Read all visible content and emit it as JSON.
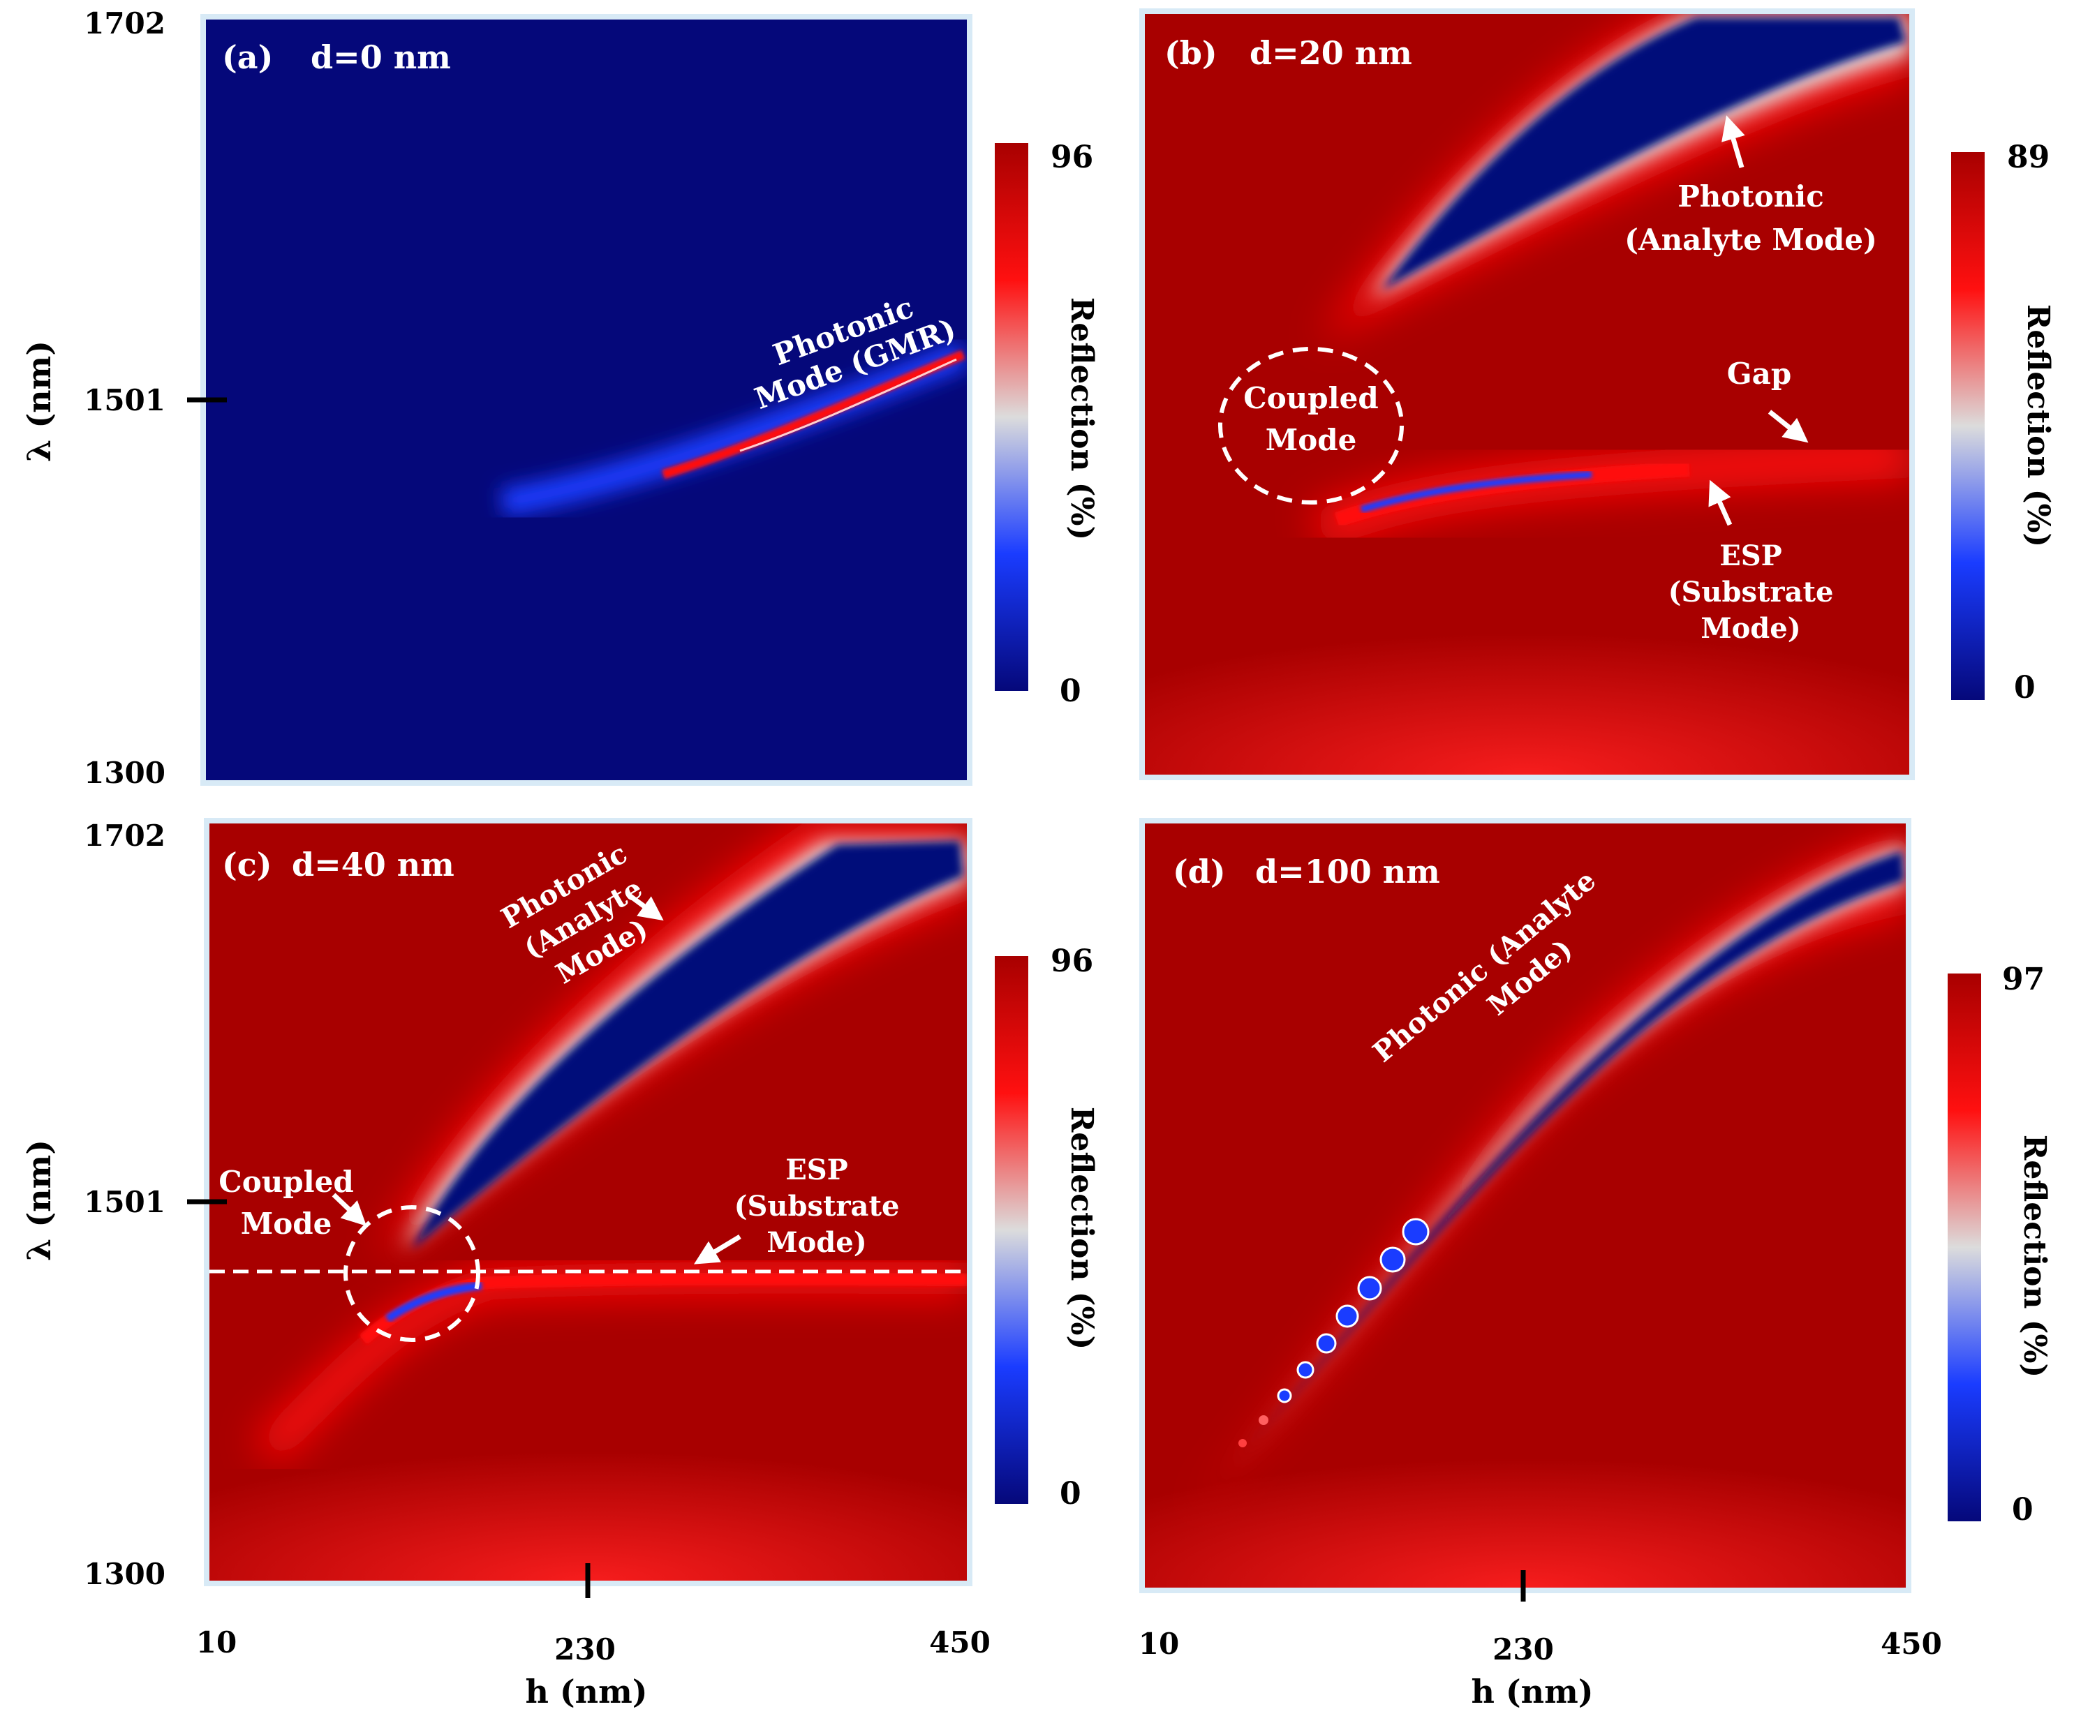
{
  "figure": {
    "axis_x_label": "h (nm)",
    "axis_y_label": "λ (nm)",
    "colorbar_label": "Reflection (%)"
  },
  "colors": {
    "low": "#05087a",
    "mid_blue": "#1a3cff",
    "mid_white": "#dcdcdc",
    "mid_red": "#ff1010",
    "high": "#a80000"
  },
  "chart_data": [
    {
      "type": "heatmap",
      "panel": "(a)",
      "title": "d=0 nm",
      "xlabel": "",
      "ylabel": "λ (nm)",
      "xlim": [
        10,
        450
      ],
      "ylim": [
        1300,
        1702
      ],
      "yticks": [
        "1702",
        "1501",
        "1300"
      ],
      "xticks": [],
      "colorbar": {
        "min": 0,
        "max": 96,
        "label": "Reflection (%)",
        "ticks": [
          "96",
          "0"
        ]
      },
      "background": "low",
      "annotations": [
        {
          "text": "Photonic",
          "text2": "Mode (GMR)"
        }
      ],
      "modes": [
        {
          "name": "Photonic Mode (GMR)",
          "points": [
            [
              180,
              1436
            ],
            [
              300,
              1460
            ],
            [
              370,
              1483
            ],
            [
              430,
              1506
            ]
          ]
        }
      ]
    },
    {
      "type": "heatmap",
      "panel": "(b)",
      "title": "d=20 nm",
      "xlabel": "",
      "ylabel": "",
      "xlim": [
        10,
        450
      ],
      "ylim": [
        1300,
        1702
      ],
      "yticks": [],
      "xticks": [],
      "colorbar": {
        "min": 0,
        "max": 89,
        "label": "Reflection (%)",
        "ticks": [
          "89",
          "0"
        ]
      },
      "background": "high",
      "annotations": [
        {
          "text": "Photonic",
          "text2": "(Analyte Mode)"
        },
        {
          "text": "Coupled",
          "text2": "Mode"
        },
        {
          "text": "Gap"
        },
        {
          "text": "ESP",
          "text2": "(Substrate",
          "text3": "Mode)"
        }
      ],
      "modes": [
        {
          "name": "Photonic (Analyte Mode)",
          "points": [
            [
              120,
              1570
            ],
            [
              200,
              1640
            ],
            [
              300,
              1680
            ],
            [
              430,
              1698
            ]
          ]
        },
        {
          "name": "ESP (Substrate Mode)",
          "points": [
            [
              110,
              1433
            ],
            [
              180,
              1450
            ],
            [
              260,
              1458
            ],
            [
              440,
              1462
            ]
          ]
        }
      ]
    },
    {
      "type": "heatmap",
      "panel": "(c)",
      "title": "d=40 nm",
      "xlabel": "h (nm)",
      "ylabel": "λ (nm)",
      "xlim": [
        10,
        450
      ],
      "ylim": [
        1300,
        1702
      ],
      "yticks": [
        "1702",
        "1501",
        "1300"
      ],
      "xticks": [
        "10",
        "230",
        "450"
      ],
      "colorbar": {
        "min": 0,
        "max": 96,
        "label": "Reflection (%)",
        "ticks": [
          "96",
          "0"
        ]
      },
      "background": "high",
      "annotations": [
        {
          "text": "Photonic",
          "text2": "(Analyte",
          "text3": "Mode)"
        },
        {
          "text": "Coupled",
          "text2": "Mode"
        },
        {
          "text": "ESP",
          "text2": "(Substrate",
          "text3": "Mode)"
        }
      ],
      "modes": [
        {
          "name": "Photonic (Analyte Mode)",
          "points": [
            [
              115,
              1495
            ],
            [
              170,
              1560
            ],
            [
              260,
              1620
            ],
            [
              440,
              1678
            ]
          ]
        },
        {
          "name": "ESP (Substrate Mode)",
          "points": [
            [
              110,
              1444
            ],
            [
              150,
              1458
            ],
            [
              200,
              1463
            ],
            [
              440,
              1465
            ]
          ]
        }
      ]
    },
    {
      "type": "heatmap",
      "panel": "(d)",
      "title": "d=100 nm",
      "xlabel": "h (nm)",
      "ylabel": "",
      "xlim": [
        10,
        450
      ],
      "ylim": [
        1300,
        1702
      ],
      "yticks": [],
      "xticks": [
        "10",
        "230",
        "450"
      ],
      "colorbar": {
        "min": 0,
        "max": 97,
        "label": "Reflection (%)",
        "ticks": [
          "97",
          "0"
        ]
      },
      "background": "high",
      "annotations": [
        {
          "text": "Photonic (Analyte",
          "text2": "Mode)"
        }
      ],
      "modes": [
        {
          "name": "Photonic (Analyte Mode)",
          "points": [
            [
              90,
              1400
            ],
            [
              150,
              1490
            ],
            [
              240,
              1580
            ],
            [
              440,
              1680
            ]
          ]
        }
      ]
    }
  ]
}
